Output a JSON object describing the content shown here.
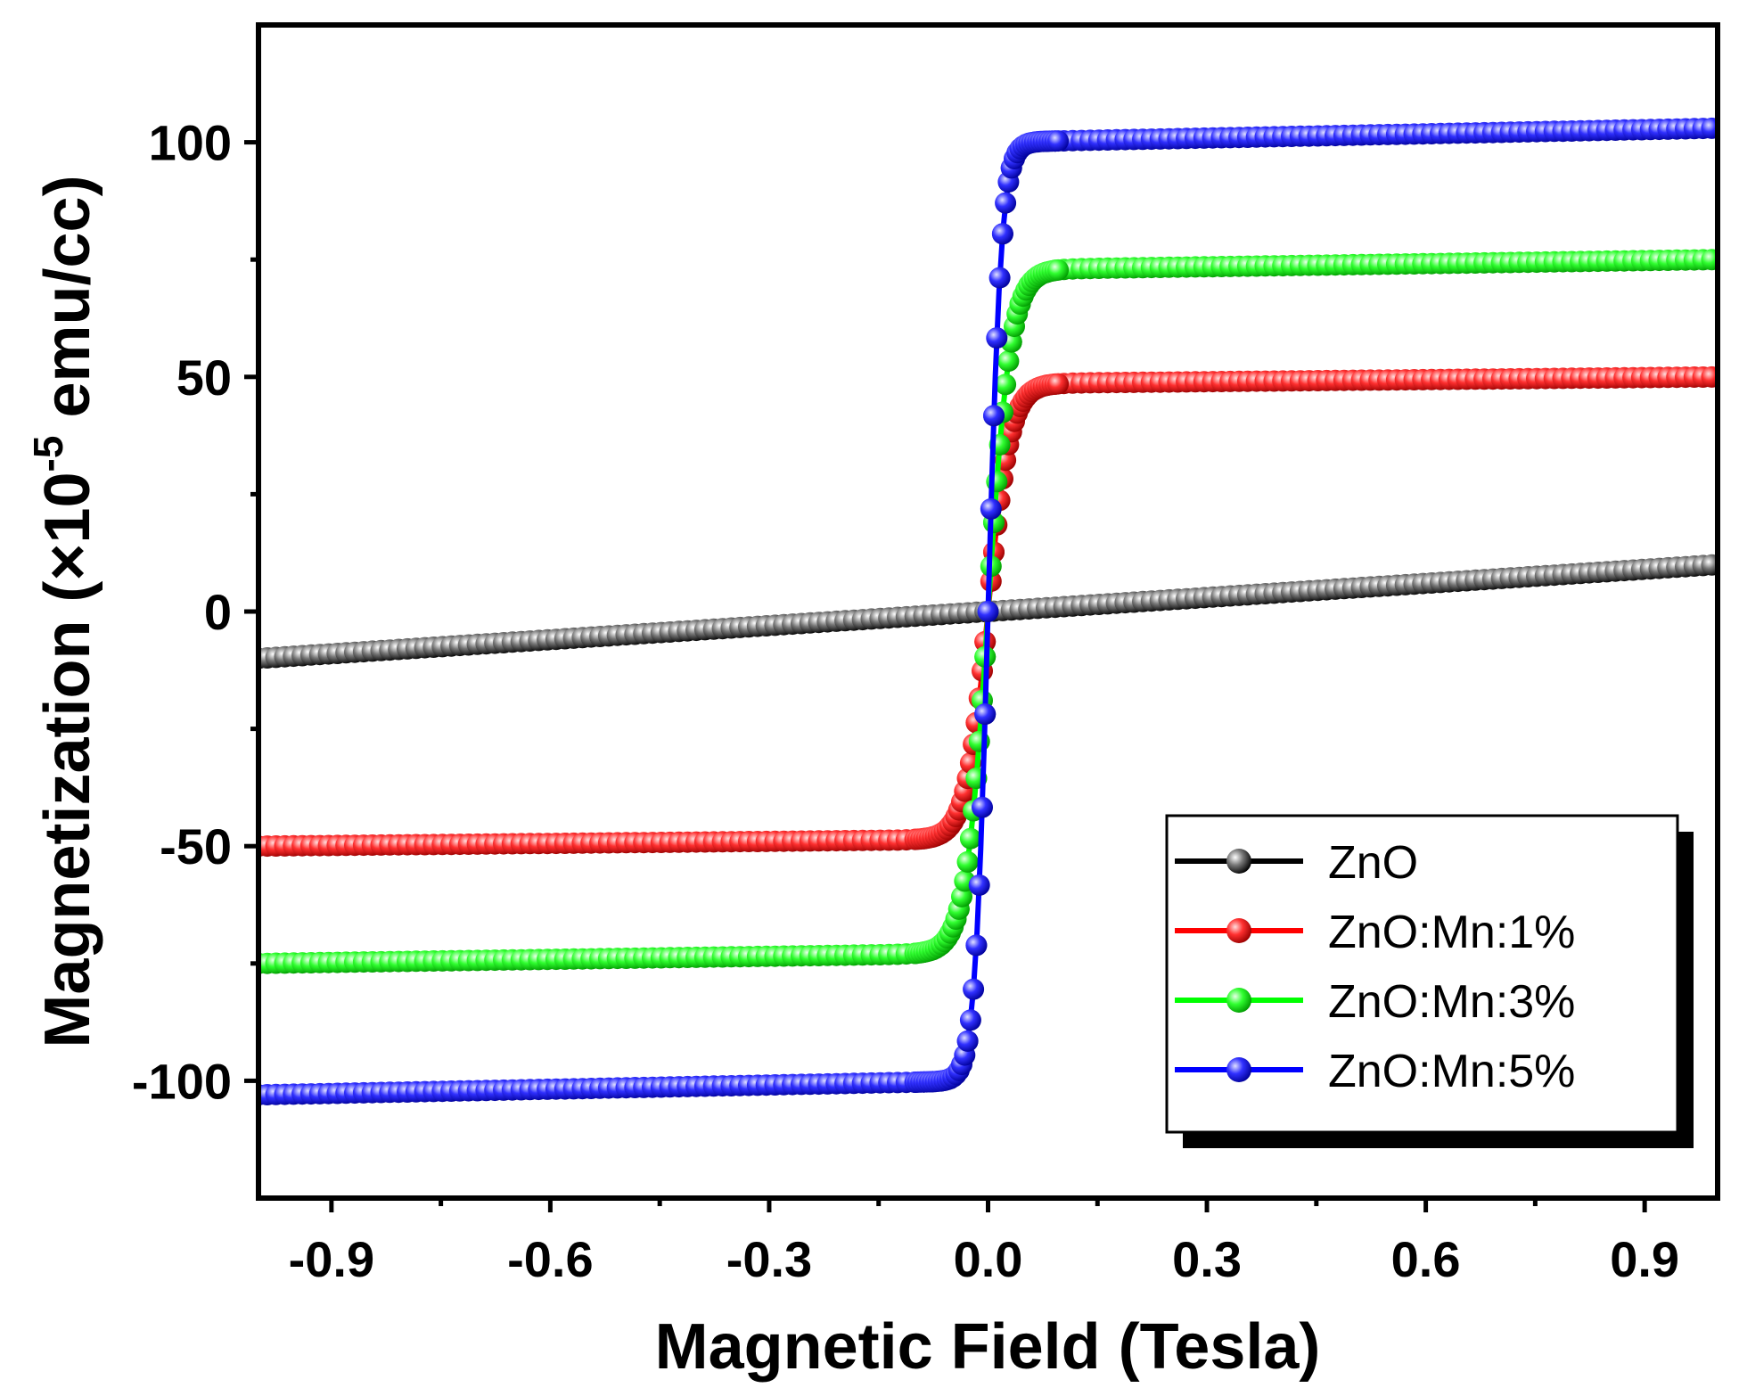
{
  "chart_data": {
    "type": "scatter",
    "xlabel": "Magnetic Field (Tesla)",
    "ylabel_main": "Magnetization (×10",
    "ylabel_sup": "-5",
    "ylabel_tail": " emu/cc)",
    "xlim": [
      -1.0,
      1.0
    ],
    "ylim": [
      -125,
      125
    ],
    "xticks": [
      -0.9,
      -0.6,
      -0.3,
      0.0,
      0.3,
      0.6,
      0.9
    ],
    "xtick_labels": [
      "-0.9",
      "-0.6",
      "-0.3",
      "0.0",
      "0.3",
      "0.6",
      "0.9"
    ],
    "yticks": [
      -100,
      -50,
      0,
      50,
      100
    ],
    "ytick_labels": [
      "-100",
      "-50",
      "0",
      "50",
      "100"
    ],
    "legend_position": "bottom-right",
    "series": [
      {
        "name": "ZnO",
        "color": "#000000",
        "kind": "linear",
        "saturation": 10,
        "width": 0.03
      },
      {
        "name": "ZnO:Mn:1%",
        "color": "#ff0000",
        "kind": "sigmoid",
        "saturation": 50,
        "width": 0.03
      },
      {
        "name": "ZnO:Mn:3%",
        "color": "#00ff00",
        "kind": "sigmoid",
        "saturation": 75,
        "width": 0.03
      },
      {
        "name": "ZnO:Mn:5%",
        "color": "#0000ff",
        "kind": "sigmoid",
        "saturation": 103,
        "width": 0.018
      }
    ]
  }
}
